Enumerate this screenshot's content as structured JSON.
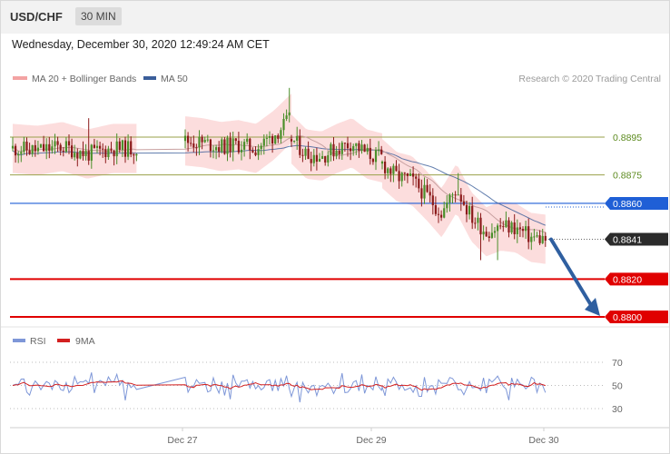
{
  "header": {
    "pair": "USD/CHF",
    "timeframe": "30 MIN",
    "datetime": "Wednesday, December 30, 2020 12:49:24 AM CET",
    "credit": "Research © 2020 Trading Central"
  },
  "legend": {
    "ma20_bb": "MA 20 + Bollinger Bands",
    "ma50": "MA 50",
    "rsi": "RSI",
    "ma9": "9MA"
  },
  "colors": {
    "bull": "#4a8f2a",
    "bear": "#8b1a1a",
    "bollinger": "#fbd5d5",
    "ma50": "#3b5e9a",
    "ma20": "#c8a0a0",
    "support": "#e00000",
    "pivot": "#1f5fd6",
    "resistance": "#9aa04a",
    "rsi": "#7e97d8",
    "ma9": "#d32020",
    "arrow": "#2f5fa0"
  },
  "chart_data": {
    "type": "candlestick",
    "y_range": [
      0.8795,
      0.892
    ],
    "levels": [
      {
        "label": "0.8895",
        "kind": "resistance"
      },
      {
        "label": "0.8875",
        "kind": "resistance"
      },
      {
        "label": "0.8860",
        "kind": "pivot"
      },
      {
        "label": "0.8841",
        "kind": "last"
      },
      {
        "label": "0.8820",
        "kind": "support"
      },
      {
        "label": "0.8800",
        "kind": "support"
      }
    ],
    "x_ticks": [
      "Dec 27",
      "Dec 29",
      "Dec 30"
    ],
    "forecast_target": 0.88,
    "rsi": {
      "y_range": [
        20,
        80
      ],
      "levels": [
        "70",
        "50",
        "30"
      ]
    }
  }
}
